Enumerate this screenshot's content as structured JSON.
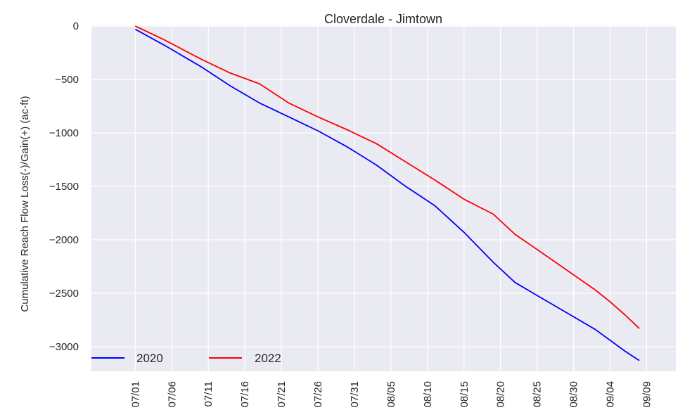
{
  "chart_data": {
    "type": "line",
    "title": "Cloverdale - Jimtown",
    "xlabel": "",
    "ylabel": "Cumulative Reach Flow Loss(-)/Gain(+) (ac-ft)",
    "x_tick_labels": [
      "07/01",
      "07/06",
      "07/11",
      "07/16",
      "07/21",
      "07/26",
      "07/31",
      "08/05",
      "08/10",
      "08/15",
      "08/20",
      "08/25",
      "08/30",
      "09/04",
      "09/09"
    ],
    "y_ticks": [
      0,
      -500,
      -1000,
      -1500,
      -2000,
      -2500,
      -3000
    ],
    "y_tick_labels": [
      "0",
      "−500",
      "−1000",
      "−1500",
      "−2000",
      "−2500",
      "−3000"
    ],
    "xlim": [
      "06/25",
      "09/13"
    ],
    "ylim": [
      -3230,
      0
    ],
    "grid": true,
    "legend_position": "lower-left",
    "x": [
      "07/01",
      "07/05",
      "07/10",
      "07/14",
      "07/18",
      "07/22",
      "07/26",
      "07/30",
      "08/03",
      "08/07",
      "08/11",
      "08/15",
      "08/19",
      "08/22",
      "08/25",
      "08/29",
      "09/02",
      "09/04",
      "09/06",
      "09/08"
    ],
    "series": [
      {
        "name": "2020",
        "color": "#0000ff",
        "values": [
          -30,
          -180,
          -380,
          -560,
          -720,
          -850,
          -980,
          -1130,
          -1300,
          -1500,
          -1680,
          -1930,
          -2210,
          -2400,
          -2520,
          -2680,
          -2840,
          -2940,
          -3040,
          -3130
        ]
      },
      {
        "name": "2022",
        "color": "#ff0000",
        "values": [
          0,
          -130,
          -310,
          -440,
          -540,
          -720,
          -850,
          -970,
          -1100,
          -1270,
          -1440,
          -1620,
          -1760,
          -1950,
          -2090,
          -2280,
          -2470,
          -2580,
          -2700,
          -2830
        ]
      }
    ]
  }
}
